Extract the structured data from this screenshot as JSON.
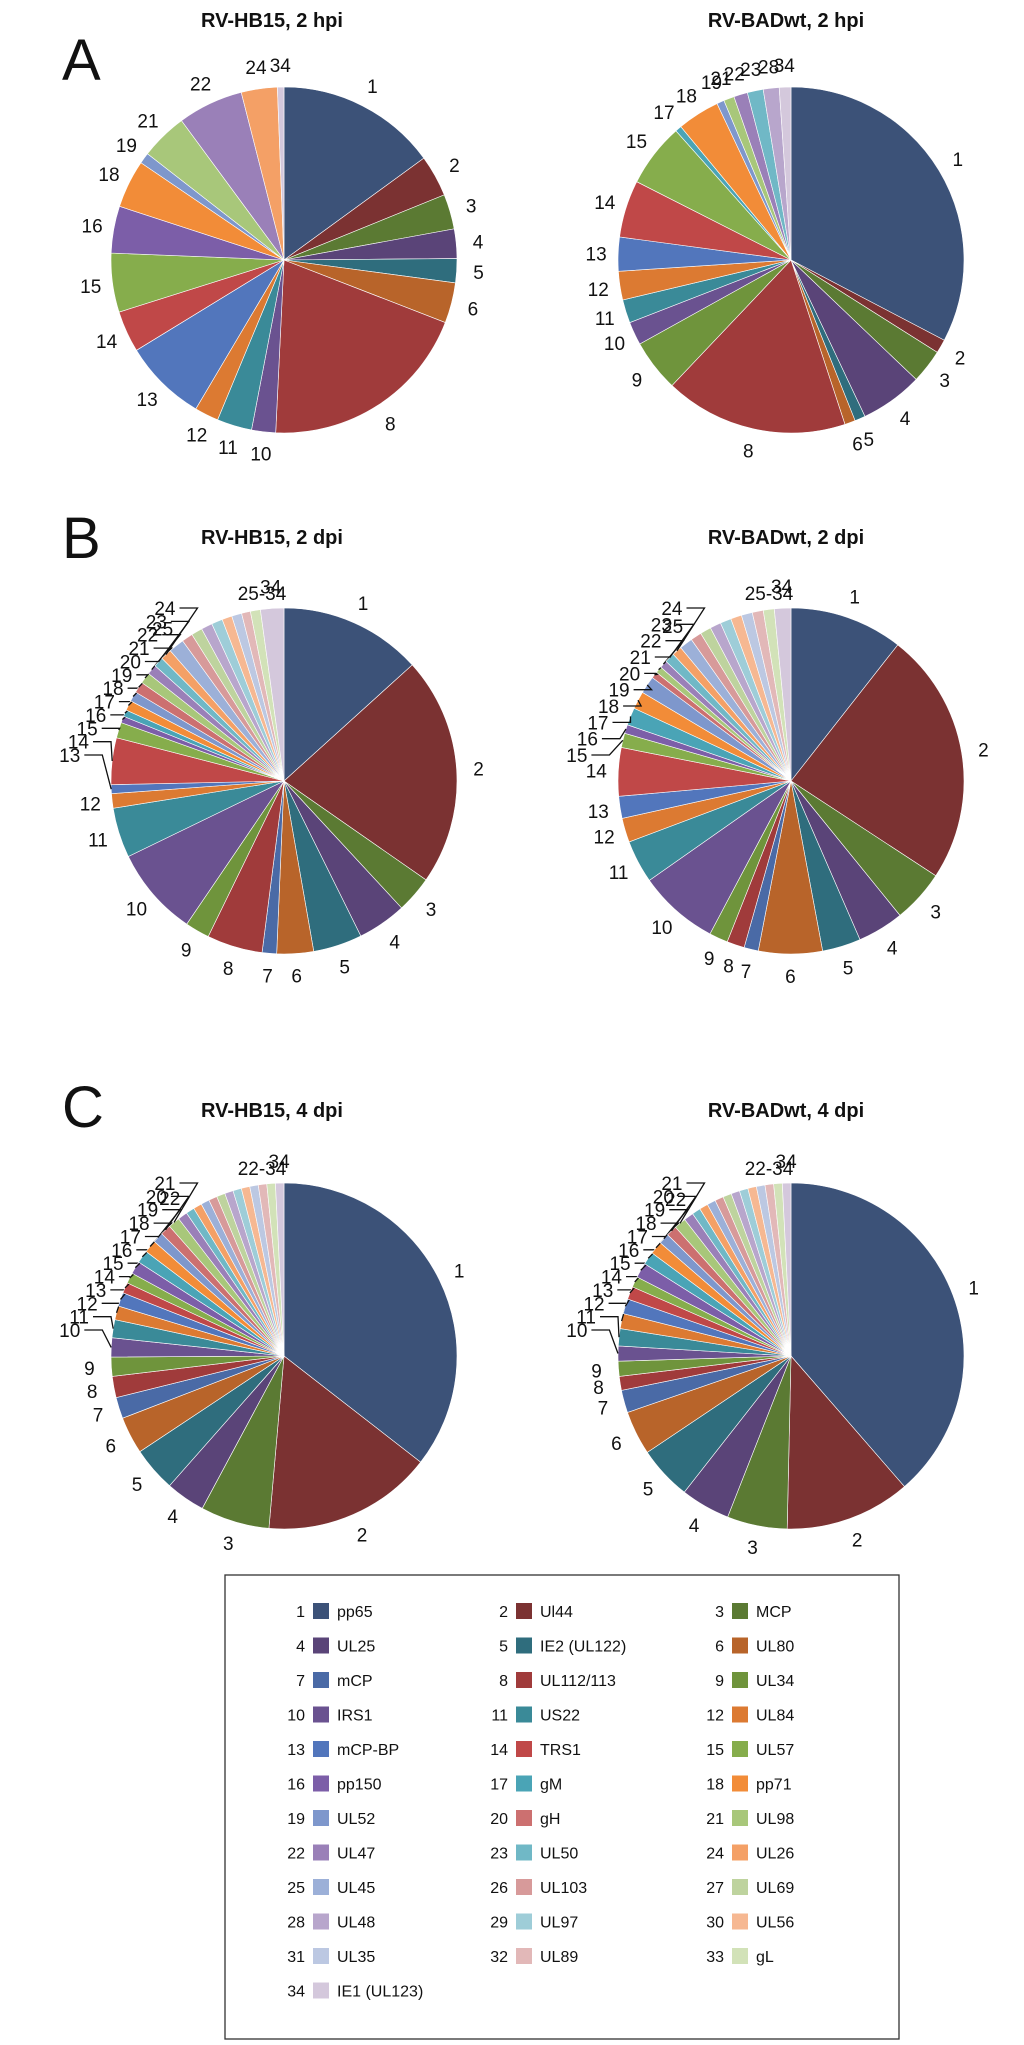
{
  "panels": [
    {
      "letter": "A"
    },
    {
      "letter": "B"
    },
    {
      "letter": "C"
    }
  ],
  "legend": [
    {
      "num": "1",
      "name": "pp65",
      "color": "#3c5278"
    },
    {
      "num": "2",
      "name": "Ul44",
      "color": "#7b3232"
    },
    {
      "num": "3",
      "name": "MCP",
      "color": "#5b7a33"
    },
    {
      "num": "4",
      "name": "UL25",
      "color": "#5a4478"
    },
    {
      "num": "5",
      "name": "IE2 (UL122)",
      "color": "#2f6d7d"
    },
    {
      "num": "6",
      "name": "UL80",
      "color": "#b8642a"
    },
    {
      "num": "7",
      "name": "mCP",
      "color": "#4a6aa6"
    },
    {
      "num": "8",
      "name": "UL112/113",
      "color": "#a03b3b"
    },
    {
      "num": "9",
      "name": "UL34",
      "color": "#6f943c"
    },
    {
      "num": "10",
      "name": "IRS1",
      "color": "#6a5290"
    },
    {
      "num": "11",
      "name": "US22",
      "color": "#3a8a98"
    },
    {
      "num": "12",
      "name": "UL84",
      "color": "#dc7a32"
    },
    {
      "num": "13",
      "name": "mCP-BP",
      "color": "#5276bc"
    },
    {
      "num": "14",
      "name": "TRS1",
      "color": "#c04848"
    },
    {
      "num": "15",
      "name": "UL57",
      "color": "#86ad4c"
    },
    {
      "num": "16",
      "name": "pp150",
      "color": "#7c5ea8"
    },
    {
      "num": "17",
      "name": "gM",
      "color": "#4aa4b6"
    },
    {
      "num": "18",
      "name": "pp71",
      "color": "#f28c38"
    },
    {
      "num": "19",
      "name": "UL52",
      "color": "#7e97cc"
    },
    {
      "num": "20",
      "name": "gH",
      "color": "#cc7070"
    },
    {
      "num": "21",
      "name": "UL98",
      "color": "#a8c77a"
    },
    {
      "num": "22",
      "name": "UL47",
      "color": "#9a80b8"
    },
    {
      "num": "23",
      "name": "UL50",
      "color": "#70b8c6"
    },
    {
      "num": "24",
      "name": "UL26",
      "color": "#f4a066"
    },
    {
      "num": "25",
      "name": "UL45",
      "color": "#9cb0d8"
    },
    {
      "num": "26",
      "name": "UL103",
      "color": "#d79a9a"
    },
    {
      "num": "27",
      "name": "UL69",
      "color": "#bed39e"
    },
    {
      "num": "28",
      "name": "UL48",
      "color": "#b8a6cc"
    },
    {
      "num": "29",
      "name": "UL97",
      "color": "#9ecdd8"
    },
    {
      "num": "30",
      "name": "UL56",
      "color": "#f6b892"
    },
    {
      "num": "31",
      "name": "UL35",
      "color": "#bcc8e2"
    },
    {
      "num": "32",
      "name": "UL89",
      "color": "#e2b8b8"
    },
    {
      "num": "33",
      "name": "gL",
      "color": "#d2e2b8"
    },
    {
      "num": "34",
      "name": "IE1 (UL123)",
      "color": "#d4c8dc"
    }
  ],
  "chart_data": [
    {
      "type": "pie",
      "title": "RV-HB15, 2 hpi",
      "slices": [
        {
          "id": 1,
          "value": 14.7,
          "label": "1"
        },
        {
          "id": 2,
          "value": 3.8,
          "label": "2"
        },
        {
          "id": 3,
          "value": 3.2,
          "label": "3"
        },
        {
          "id": 4,
          "value": 2.7,
          "label": "4"
        },
        {
          "id": 5,
          "value": 2.2,
          "label": "5"
        },
        {
          "id": 6,
          "value": 3.7,
          "label": "6"
        },
        {
          "id": 8,
          "value": 19.5,
          "label": "8"
        },
        {
          "id": 10,
          "value": 2.2,
          "label": "10"
        },
        {
          "id": 11,
          "value": 3.2,
          "label": "11"
        },
        {
          "id": 12,
          "value": 2.2,
          "label": "12"
        },
        {
          "id": 13,
          "value": 7.6,
          "label": "13"
        },
        {
          "id": 14,
          "value": 3.8,
          "label": "14"
        },
        {
          "id": 15,
          "value": 5.4,
          "label": "15"
        },
        {
          "id": 16,
          "value": 4.3,
          "label": "16"
        },
        {
          "id": 18,
          "value": 4.4,
          "label": "18"
        },
        {
          "id": 19,
          "value": 1.0,
          "label": "19"
        },
        {
          "id": 21,
          "value": 4.3,
          "label": "21"
        },
        {
          "id": 22,
          "value": 6.0,
          "label": "22"
        },
        {
          "id": 24,
          "value": 3.3,
          "label": "24"
        },
        {
          "id": 34,
          "value": 0.6,
          "label": "34"
        }
      ]
    },
    {
      "type": "pie",
      "title": "RV-BADwt, 2 hpi",
      "slices": [
        {
          "id": 1,
          "value": 33.0,
          "label": "1"
        },
        {
          "id": 2,
          "value": 1.3,
          "label": "2"
        },
        {
          "id": 3,
          "value": 3.2,
          "label": "3"
        },
        {
          "id": 4,
          "value": 5.9,
          "label": "4"
        },
        {
          "id": 5,
          "value": 1.0,
          "label": "5"
        },
        {
          "id": 6,
          "value": 1.0,
          "label": "6"
        },
        {
          "id": 8,
          "value": 17.3,
          "label": "8"
        },
        {
          "id": 9,
          "value": 4.9,
          "label": "9"
        },
        {
          "id": 10,
          "value": 2.2,
          "label": "10"
        },
        {
          "id": 11,
          "value": 2.2,
          "label": "11"
        },
        {
          "id": 12,
          "value": 2.7,
          "label": "12"
        },
        {
          "id": 13,
          "value": 3.2,
          "label": "13"
        },
        {
          "id": 14,
          "value": 5.4,
          "label": "14"
        },
        {
          "id": 15,
          "value": 6.0,
          "label": "15"
        },
        {
          "id": 17,
          "value": 0.6,
          "label": "17"
        },
        {
          "id": 18,
          "value": 4.0,
          "label": "18"
        },
        {
          "id": 19,
          "value": 0.7,
          "label": "19"
        },
        {
          "id": 21,
          "value": 1.0,
          "label": "21"
        },
        {
          "id": 22,
          "value": 1.3,
          "label": "22"
        },
        {
          "id": 23,
          "value": 1.5,
          "label": "23"
        },
        {
          "id": 28,
          "value": 1.5,
          "label": "28"
        },
        {
          "id": 34,
          "value": 1.1,
          "label": "34"
        }
      ]
    },
    {
      "type": "pie",
      "title": "RV-HB15, 2 dpi",
      "slices": [
        {
          "id": 1,
          "value": 12.8,
          "label": "1"
        },
        {
          "id": 2,
          "value": 20.6,
          "label": "2"
        },
        {
          "id": 3,
          "value": 3.3,
          "label": "3"
        },
        {
          "id": 4,
          "value": 4.4,
          "label": "4"
        },
        {
          "id": 5,
          "value": 4.4,
          "label": "5"
        },
        {
          "id": 6,
          "value": 3.3,
          "label": "6"
        },
        {
          "id": 7,
          "value": 1.3,
          "label": "7"
        },
        {
          "id": 8,
          "value": 5.0,
          "label": "8"
        },
        {
          "id": 9,
          "value": 2.2,
          "label": "9"
        },
        {
          "id": 10,
          "value": 8.0,
          "label": "10"
        },
        {
          "id": 11,
          "value": 4.5,
          "label": "11"
        },
        {
          "id": 12,
          "value": 1.3,
          "label": "12"
        },
        {
          "id": 13,
          "value": 0.8,
          "label": "13"
        },
        {
          "id": 14,
          "value": 4.2,
          "label": "14"
        },
        {
          "id": 15,
          "value": 1.4,
          "label": "15"
        },
        {
          "id": 16,
          "value": 0.6,
          "label": "16"
        },
        {
          "id": 17,
          "value": 0.6,
          "label": "17"
        },
        {
          "id": 18,
          "value": 0.9,
          "label": "18"
        },
        {
          "id": 19,
          "value": 0.9,
          "label": "19"
        },
        {
          "id": 20,
          "value": 1.0,
          "label": "20"
        },
        {
          "id": 21,
          "value": 1.0,
          "label": "21"
        },
        {
          "id": 22,
          "value": 0.9,
          "label": "22"
        },
        {
          "id": 23,
          "value": 0.9,
          "label": "23"
        },
        {
          "id": 24,
          "value": 1.0,
          "label": "24"
        },
        {
          "id": 25,
          "value": 1.4,
          "label": "25"
        },
        {
          "id": 26,
          "value": 1.0,
          "label": ""
        },
        {
          "id": 27,
          "value": 1.0,
          "label": ""
        },
        {
          "id": 28,
          "value": 1.0,
          "label": ""
        },
        {
          "id": 29,
          "value": 1.0,
          "label": ""
        },
        {
          "id": 30,
          "value": 0.9,
          "label": ""
        },
        {
          "id": 31,
          "value": 0.9,
          "label": ""
        },
        {
          "id": 32,
          "value": 0.8,
          "label": ""
        },
        {
          "id": 33,
          "value": 0.9,
          "label": ""
        },
        {
          "id": 34,
          "value": 2.1,
          "label": "34"
        }
      ]
    },
    {
      "type": "pie",
      "title": "RV-BADwt, 2 dpi",
      "slices": [
        {
          "id": 1,
          "value": 10.3,
          "label": "1"
        },
        {
          "id": 2,
          "value": 23.0,
          "label": "2"
        },
        {
          "id": 3,
          "value": 4.8,
          "label": "3"
        },
        {
          "id": 4,
          "value": 4.2,
          "label": "4"
        },
        {
          "id": 5,
          "value": 3.5,
          "label": "5"
        },
        {
          "id": 6,
          "value": 5.8,
          "label": "6"
        },
        {
          "id": 7,
          "value": 1.3,
          "label": "7"
        },
        {
          "id": 8,
          "value": 1.6,
          "label": "8"
        },
        {
          "id": 9,
          "value": 1.7,
          "label": "9"
        },
        {
          "id": 10,
          "value": 7.3,
          "label": "10"
        },
        {
          "id": 11,
          "value": 3.9,
          "label": "11"
        },
        {
          "id": 12,
          "value": 2.2,
          "label": "12"
        },
        {
          "id": 13,
          "value": 2.0,
          "label": "13"
        },
        {
          "id": 14,
          "value": 4.4,
          "label": "14"
        },
        {
          "id": 15,
          "value": 1.3,
          "label": "15"
        },
        {
          "id": 16,
          "value": 0.8,
          "label": "16"
        },
        {
          "id": 17,
          "value": 1.6,
          "label": "17"
        },
        {
          "id": 18,
          "value": 1.6,
          "label": "18"
        },
        {
          "id": 19,
          "value": 1.6,
          "label": "19"
        },
        {
          "id": 20,
          "value": 0.6,
          "label": "20"
        },
        {
          "id": 21,
          "value": 0.6,
          "label": "21"
        },
        {
          "id": 22,
          "value": 0.7,
          "label": "22"
        },
        {
          "id": 23,
          "value": 0.9,
          "label": "23"
        },
        {
          "id": 24,
          "value": 0.9,
          "label": "24"
        },
        {
          "id": 25,
          "value": 1.2,
          "label": "25"
        },
        {
          "id": 26,
          "value": 1.0,
          "label": ""
        },
        {
          "id": 27,
          "value": 1.0,
          "label": ""
        },
        {
          "id": 28,
          "value": 1.0,
          "label": ""
        },
        {
          "id": 29,
          "value": 1.0,
          "label": ""
        },
        {
          "id": 30,
          "value": 1.0,
          "label": ""
        },
        {
          "id": 31,
          "value": 1.0,
          "label": ""
        },
        {
          "id": 32,
          "value": 1.0,
          "label": ""
        },
        {
          "id": 33,
          "value": 1.0,
          "label": ""
        },
        {
          "id": 34,
          "value": 1.5,
          "label": "34"
        }
      ]
    },
    {
      "type": "pie",
      "title": "RV-HB15, 4 dpi",
      "slices": [
        {
          "id": 1,
          "value": 35.8,
          "label": "1"
        },
        {
          "id": 2,
          "value": 16.0,
          "label": "2"
        },
        {
          "id": 3,
          "value": 6.5,
          "label": "3"
        },
        {
          "id": 4,
          "value": 3.7,
          "label": "4"
        },
        {
          "id": 5,
          "value": 4.2,
          "label": "5"
        },
        {
          "id": 6,
          "value": 3.5,
          "label": "6"
        },
        {
          "id": 7,
          "value": 2.0,
          "label": "7"
        },
        {
          "id": 8,
          "value": 2.0,
          "label": "8"
        },
        {
          "id": 9,
          "value": 1.8,
          "label": "9"
        },
        {
          "id": 10,
          "value": 1.8,
          "label": "10"
        },
        {
          "id": 11,
          "value": 1.7,
          "label": "11"
        },
        {
          "id": 12,
          "value": 1.3,
          "label": "12"
        },
        {
          "id": 13,
          "value": 1.3,
          "label": "13"
        },
        {
          "id": 14,
          "value": 1.0,
          "label": "14"
        },
        {
          "id": 15,
          "value": 1.0,
          "label": "15"
        },
        {
          "id": 16,
          "value": 1.2,
          "label": "16"
        },
        {
          "id": 17,
          "value": 1.2,
          "label": "17"
        },
        {
          "id": 18,
          "value": 1.2,
          "label": "18"
        },
        {
          "id": 19,
          "value": 1.0,
          "label": "19"
        },
        {
          "id": 20,
          "value": 1.0,
          "label": "20"
        },
        {
          "id": 21,
          "value": 1.1,
          "label": "21"
        },
        {
          "id": 22,
          "value": 0.9,
          "label": "22"
        },
        {
          "id": 23,
          "value": 0.8,
          "label": ""
        },
        {
          "id": 24,
          "value": 0.8,
          "label": ""
        },
        {
          "id": 25,
          "value": 0.8,
          "label": ""
        },
        {
          "id": 26,
          "value": 0.8,
          "label": ""
        },
        {
          "id": 27,
          "value": 0.8,
          "label": ""
        },
        {
          "id": 28,
          "value": 0.8,
          "label": ""
        },
        {
          "id": 29,
          "value": 0.8,
          "label": ""
        },
        {
          "id": 30,
          "value": 0.8,
          "label": ""
        },
        {
          "id": 31,
          "value": 0.8,
          "label": ""
        },
        {
          "id": 32,
          "value": 0.8,
          "label": ""
        },
        {
          "id": 33,
          "value": 0.8,
          "label": ""
        },
        {
          "id": 34,
          "value": 0.8,
          "label": "34"
        }
      ]
    },
    {
      "type": "pie",
      "title": "RV-BADwt, 4 dpi",
      "slices": [
        {
          "id": 1,
          "value": 38.5,
          "label": "1"
        },
        {
          "id": 2,
          "value": 11.7,
          "label": "2"
        },
        {
          "id": 3,
          "value": 5.6,
          "label": "3"
        },
        {
          "id": 4,
          "value": 4.6,
          "label": "4"
        },
        {
          "id": 5,
          "value": 5.0,
          "label": "5"
        },
        {
          "id": 6,
          "value": 4.1,
          "label": "6"
        },
        {
          "id": 7,
          "value": 2.1,
          "label": "7"
        },
        {
          "id": 8,
          "value": 1.3,
          "label": "8"
        },
        {
          "id": 9,
          "value": 1.4,
          "label": "9"
        },
        {
          "id": 10,
          "value": 1.4,
          "label": "10"
        },
        {
          "id": 11,
          "value": 1.6,
          "label": "11"
        },
        {
          "id": 12,
          "value": 1.4,
          "label": "12"
        },
        {
          "id": 13,
          "value": 1.4,
          "label": "13"
        },
        {
          "id": 14,
          "value": 1.2,
          "label": "14"
        },
        {
          "id": 15,
          "value": 1.0,
          "label": "15"
        },
        {
          "id": 16,
          "value": 1.4,
          "label": "16"
        },
        {
          "id": 17,
          "value": 1.2,
          "label": "17"
        },
        {
          "id": 18,
          "value": 1.2,
          "label": "18"
        },
        {
          "id": 19,
          "value": 1.0,
          "label": "19"
        },
        {
          "id": 20,
          "value": 1.0,
          "label": "20"
        },
        {
          "id": 21,
          "value": 1.1,
          "label": "21"
        },
        {
          "id": 22,
          "value": 0.9,
          "label": "22"
        },
        {
          "id": 23,
          "value": 0.8,
          "label": ""
        },
        {
          "id": 24,
          "value": 0.8,
          "label": ""
        },
        {
          "id": 25,
          "value": 0.8,
          "label": ""
        },
        {
          "id": 26,
          "value": 0.8,
          "label": ""
        },
        {
          "id": 27,
          "value": 0.8,
          "label": ""
        },
        {
          "id": 28,
          "value": 0.8,
          "label": ""
        },
        {
          "id": 29,
          "value": 0.8,
          "label": ""
        },
        {
          "id": 30,
          "value": 0.8,
          "label": ""
        },
        {
          "id": 31,
          "value": 0.8,
          "label": ""
        },
        {
          "id": 32,
          "value": 0.8,
          "label": ""
        },
        {
          "id": 33,
          "value": 0.8,
          "label": ""
        },
        {
          "id": 34,
          "value": 0.8,
          "label": "34"
        }
      ]
    }
  ],
  "group_labels": [
    {
      "chart": 2,
      "text": "25-34"
    },
    {
      "chart": 3,
      "text": "25-34"
    },
    {
      "chart": 4,
      "text": "22-34"
    },
    {
      "chart": 5,
      "text": "22-34"
    }
  ]
}
